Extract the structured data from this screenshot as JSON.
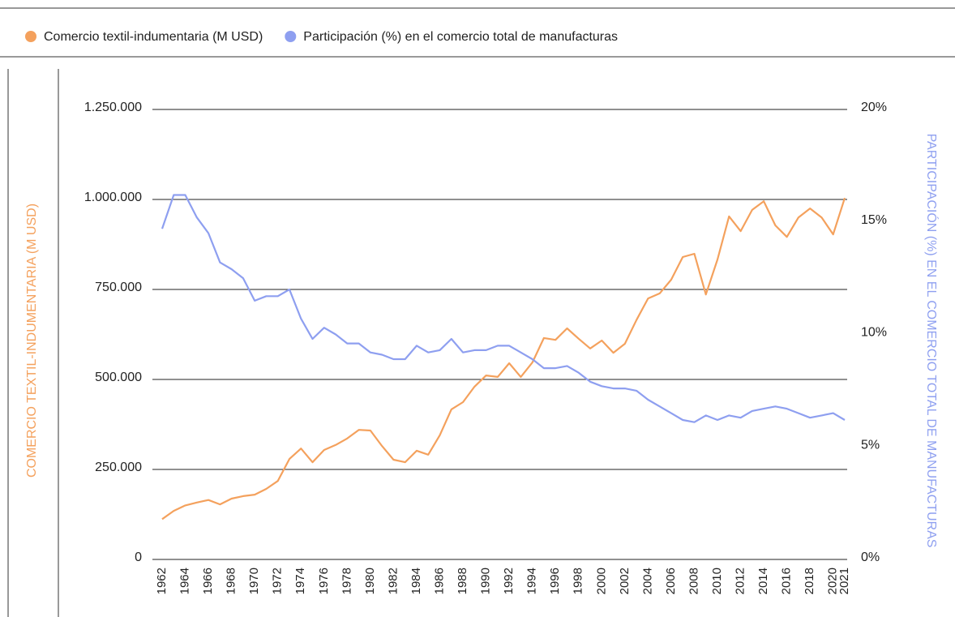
{
  "chart_data": {
    "type": "line",
    "ylabel": "COMERCIO TEXTIL-INDUMENTARIA (M USD)",
    "y2label": "PARTICIPACIÓN (%) EN EL COMERCIO TOTAL DE MANUFACTURAS",
    "x": [
      1962,
      1963,
      1964,
      1965,
      1966,
      1967,
      1968,
      1969,
      1970,
      1971,
      1972,
      1973,
      1974,
      1975,
      1976,
      1977,
      1978,
      1979,
      1980,
      1981,
      1982,
      1983,
      1984,
      1985,
      1986,
      1987,
      1988,
      1989,
      1990,
      1991,
      1992,
      1993,
      1994,
      1995,
      1996,
      1997,
      1998,
      1999,
      2000,
      2001,
      2002,
      2003,
      2004,
      2005,
      2006,
      2007,
      2008,
      2009,
      2010,
      2011,
      2012,
      2013,
      2014,
      2015,
      2016,
      2017,
      2018,
      2019,
      2020,
      2021
    ],
    "xlim": [
      1962,
      2021
    ],
    "xticks": [
      1962,
      1964,
      1966,
      1968,
      1970,
      1972,
      1974,
      1976,
      1978,
      1980,
      1982,
      1984,
      1986,
      1988,
      1990,
      1992,
      1994,
      1996,
      1998,
      2000,
      2002,
      2004,
      2006,
      2008,
      2010,
      2012,
      2014,
      2016,
      2018,
      2020,
      2021
    ],
    "ylim": [
      0,
      1250000
    ],
    "yticks": [
      0,
      {
        "value": 250000,
        "label": "250.000"
      },
      {
        "value": 500000,
        "label": "500.000"
      },
      {
        "value": 750000,
        "label": "750.000"
      },
      {
        "value": 1000000,
        "label": "1.000.000"
      },
      {
        "value": 1250000,
        "label": "1.250.000"
      }
    ],
    "y2lim": [
      0,
      20
    ],
    "y2ticks": [
      {
        "value": 0,
        "label": "0%"
      },
      {
        "value": 5,
        "label": "5%"
      },
      {
        "value": 10,
        "label": "10%"
      },
      {
        "value": 15,
        "label": "15%"
      },
      {
        "value": 20,
        "label": "20%"
      }
    ],
    "grid": true,
    "series": [
      {
        "name": "Comercio textil-indumentaria (M USD)",
        "color": "#f4a15d",
        "values": [
          112000,
          135000,
          150000,
          158000,
          165000,
          153000,
          169000,
          176000,
          180000,
          196000,
          218000,
          279000,
          308000,
          270000,
          304000,
          318000,
          336000,
          360000,
          358000,
          315000,
          277000,
          270000,
          302000,
          291000,
          345000,
          417000,
          437000,
          480000,
          511000,
          507000,
          545000,
          507000,
          547000,
          615000,
          610000,
          642000,
          613000,
          586000,
          608000,
          574000,
          599000,
          665000,
          725000,
          739000,
          777000,
          840000,
          849000,
          736000,
          833000,
          953000,
          912000,
          971000,
          995000,
          928000,
          896000,
          950000,
          975000,
          950000,
          903000,
          1004000
        ]
      },
      {
        "name": "Participación (%) en el comercio total de manufacturas",
        "color": "#8e9ff0",
        "axis": "y2",
        "values": [
          14.7,
          16.2,
          16.2,
          15.2,
          14.5,
          13.2,
          12.9,
          12.5,
          11.5,
          11.7,
          11.7,
          12.0,
          10.7,
          9.8,
          10.3,
          10.0,
          9.6,
          9.6,
          9.2,
          9.1,
          8.9,
          8.9,
          9.5,
          9.2,
          9.3,
          9.8,
          9.2,
          9.3,
          9.3,
          9.5,
          9.5,
          9.2,
          8.9,
          8.5,
          8.5,
          8.6,
          8.3,
          7.9,
          7.7,
          7.6,
          7.6,
          7.5,
          7.1,
          6.8,
          6.5,
          6.2,
          6.1,
          6.4,
          6.2,
          6.4,
          6.3,
          6.6,
          6.7,
          6.8,
          6.7,
          6.5,
          6.3,
          6.4,
          6.5,
          6.2
        ]
      }
    ]
  }
}
